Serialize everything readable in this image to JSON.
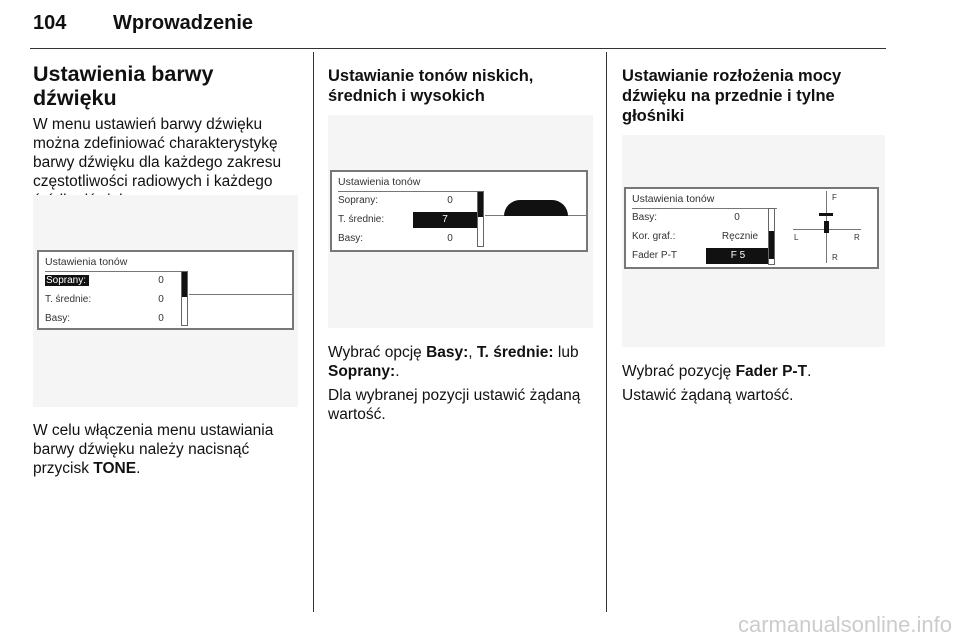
{
  "header": {
    "page_number": "104",
    "section": "Wprowadzenie"
  },
  "col1": {
    "title": "Ustawienia barwy dźwięku",
    "para1": "W menu ustawień barwy dźwięku można zdefiniować charakterystykę barwy dźwięku dla każdego zakresu częstotliwości radiowych i każdego źródła dźwięku.",
    "para2_pre": "W celu włączenia menu ustawiania barwy dźwięku należy nacisnąć przycisk ",
    "para2_bold": "TONE",
    "para2_post": ".",
    "screen": {
      "title": "Ustawienia tonów",
      "rows": [
        {
          "label": "Soprany:",
          "value": "0",
          "selected": true
        },
        {
          "label": "T. średnie:",
          "value": "0"
        },
        {
          "label": "Basy:",
          "value": "0"
        }
      ]
    }
  },
  "col2": {
    "title": "Ustawianie tonów niskich, średnich i wysokich",
    "p1_pre": "Wybrać opcję ",
    "p1_b1": "Basy:",
    "p1_sep": ", ",
    "p1_b2": "T. średnie:",
    "p1_mid": " lub ",
    "p1_b3": "Soprany:",
    "p1_end": ".",
    "p2": "Dla wybranej pozycji ustawić żądaną wartość.",
    "screen": {
      "title": "Ustawienia tonów",
      "rows": [
        {
          "label": "Soprany:",
          "value": "0"
        },
        {
          "label": "T. średnie:",
          "value": "7",
          "selected": true
        },
        {
          "label": "Basy:",
          "value": "0"
        }
      ]
    }
  },
  "col3": {
    "title": "Ustawianie rozłożenia mocy dźwięku na przednie i tylne głośniki",
    "p1_pre": "Wybrać pozycję ",
    "p1_bold": "Fader P-T",
    "p1_end": ".",
    "p2": "Ustawić żądaną wartość.",
    "screen": {
      "title": "Ustawienia tonów",
      "rows": [
        {
          "label": "Basy:",
          "value": "0"
        },
        {
          "label": "Kor. graf.:",
          "value": "Ręcznie"
        },
        {
          "label": "Fader P-T",
          "value": "F 5",
          "selected": true
        }
      ],
      "axis": {
        "front": "F",
        "left": "L",
        "right": "R",
        "rear": "R"
      }
    }
  },
  "watermark": "carmanualsonline.info"
}
